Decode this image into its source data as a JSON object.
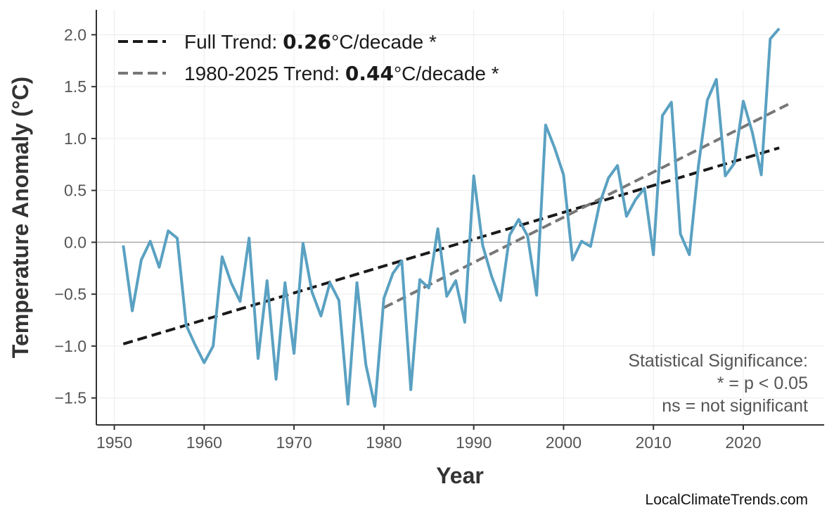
{
  "chart_data": {
    "type": "line",
    "xlabel": "Year",
    "ylabel": "Temperature Anomaly (°C)",
    "xlim": [
      1948,
      2029
    ],
    "ylim": [
      -1.76,
      2.24
    ],
    "xticks": [
      1950,
      1960,
      1970,
      1980,
      1990,
      2000,
      2010,
      2020
    ],
    "yticks": [
      -1.5,
      -1.0,
      -0.5,
      0.0,
      0.5,
      1.0,
      1.5,
      2.0
    ],
    "ytick_labels": [
      "−1.5",
      "−1.0",
      "−0.5",
      "0.0",
      "0.5",
      "1.0",
      "1.5",
      "2.0"
    ],
    "grid": true,
    "legend_position": "top-left",
    "series": {
      "x": [
        1951,
        1952,
        1953,
        1954,
        1955,
        1956,
        1957,
        1958,
        1959,
        1960,
        1961,
        1962,
        1963,
        1964,
        1965,
        1966,
        1967,
        1968,
        1969,
        1970,
        1971,
        1972,
        1973,
        1974,
        1975,
        1976,
        1977,
        1978,
        1979,
        1980,
        1981,
        1982,
        1983,
        1984,
        1985,
        1986,
        1987,
        1988,
        1989,
        1990,
        1991,
        1992,
        1993,
        1994,
        1995,
        1996,
        1997,
        1998,
        1999,
        2000,
        2001,
        2002,
        2003,
        2004,
        2005,
        2006,
        2007,
        2008,
        2009,
        2010,
        2011,
        2012,
        2013,
        2014,
        2015,
        2016,
        2017,
        2018,
        2019,
        2020,
        2021,
        2022,
        2023,
        2024
      ],
      "y": [
        -0.03,
        -0.66,
        -0.17,
        0.01,
        -0.24,
        0.11,
        0.04,
        -0.8,
        -0.99,
        -1.16,
        -1.0,
        -0.14,
        -0.39,
        -0.57,
        0.04,
        -1.12,
        -0.37,
        -1.32,
        -0.39,
        -1.07,
        -0.01,
        -0.48,
        -0.71,
        -0.39,
        -0.56,
        -1.56,
        -0.39,
        -1.18,
        -1.58,
        -0.54,
        -0.3,
        -0.18,
        -1.42,
        -0.36,
        -0.44,
        0.13,
        -0.52,
        -0.37,
        -0.77,
        0.64,
        -0.03,
        -0.33,
        -0.56,
        0.07,
        0.22,
        0.06,
        -0.51,
        1.13,
        0.91,
        0.65,
        -0.17,
        0.01,
        -0.04,
        0.37,
        0.62,
        0.74,
        0.25,
        0.41,
        0.52,
        -0.12,
        1.22,
        1.35,
        0.08,
        -0.12,
        0.73,
        1.37,
        1.57,
        0.64,
        0.76,
        1.36,
        1.06,
        0.65,
        1.96,
        2.06
      ],
      "color": "#5aa1c2"
    },
    "trends": [
      {
        "label_prefix": "Full Trend: ",
        "value": "0.26",
        "label_suffix": "°C/decade *",
        "x": [
          1951,
          2024
        ],
        "y": [
          -0.98,
          0.91
        ],
        "color": "#1a1a1a"
      },
      {
        "label_prefix": "1980-2025 Trend: ",
        "value": "0.44",
        "label_suffix": "°C/decade *",
        "x": [
          1980,
          2025
        ],
        "y": [
          -0.63,
          1.33
        ],
        "color": "#777777"
      }
    ],
    "annotation": [
      "Statistical Significance:",
      "* = p < 0.05",
      "ns = not significant"
    ],
    "watermark": "LocalClimateTrends.com"
  }
}
